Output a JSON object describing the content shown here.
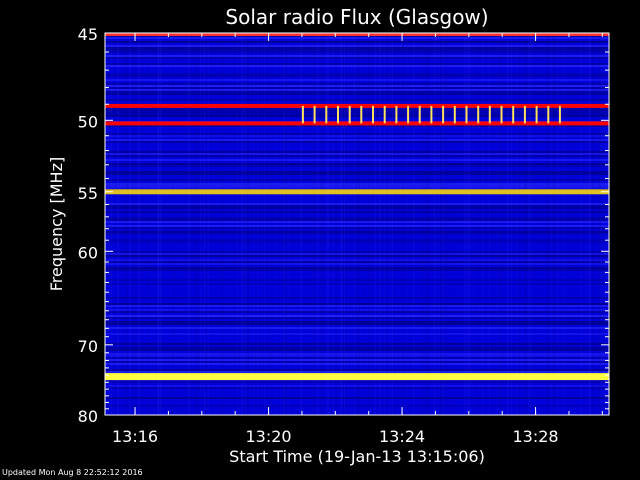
{
  "chart_data": {
    "type": "heatmap",
    "title": "Solar radio Flux (Glasgow)",
    "xlabel": "Start Time (19-Jan-13 13:15:06)",
    "ylabel": "Frequency [MHz]",
    "x_ticks": [
      "13:16",
      "13:20",
      "13:24",
      "13:28"
    ],
    "x_tick_minutes": [
      0.9,
      4.9,
      8.9,
      12.9
    ],
    "xlim_minutes": [
      0,
      15.1
    ],
    "y_ticks": [
      45,
      50,
      55,
      60,
      70,
      80
    ],
    "ylim": [
      45,
      80
    ],
    "y_scale": "reciprocal",
    "colors": {
      "background": "#0000d8",
      "dark_band": "#000078",
      "red_line": "#ff0000",
      "yellow_line": "#ffff40",
      "axis": "#ffffff"
    },
    "strong_emission_bands_mhz": [
      {
        "mhz": 49.1,
        "intensity": "high",
        "color": "red"
      },
      {
        "mhz": 50.2,
        "intensity": "high",
        "color": "red"
      },
      {
        "mhz": 55.0,
        "intensity": "medium",
        "color": "yellow"
      },
      {
        "mhz": 74.2,
        "intensity": "very high",
        "color": "yellow"
      }
    ]
  },
  "footer": "Updated Mon Aug  8 22:52:12 2016"
}
